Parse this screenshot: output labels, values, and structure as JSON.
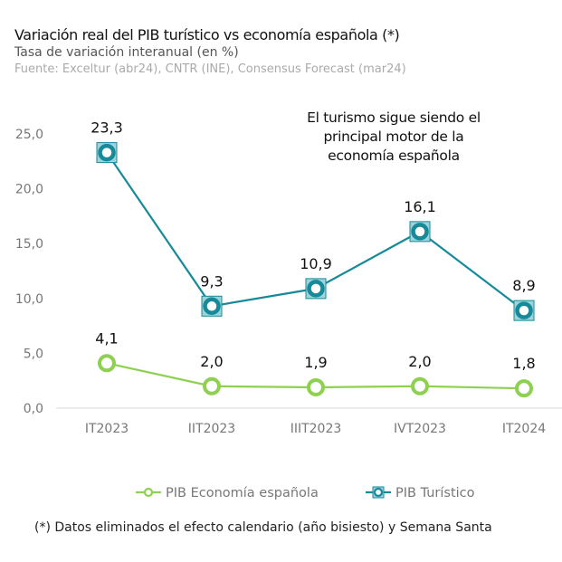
{
  "chart_data": {
    "type": "line",
    "title": "Variación real del PIB turístico vs economía española (*)",
    "subtitle": "Tasa de variación interanual (en %)",
    "source": "Fuente:  Exceltur (abr24), CNTR (INE), Consensus Forecast (mar24)",
    "annotation": [
      "El turismo sigue siendo el",
      "principal motor de la",
      "economía española"
    ],
    "footnote": "(*) Datos eliminados el efecto calendario (año bisiesto) y Semana Santa",
    "categories": [
      "IT2023",
      "IIT2023",
      "IIIT2023",
      "IVT2023",
      "IT2024"
    ],
    "ylim": [
      0,
      25
    ],
    "yticks": [
      "0,0",
      "5,0",
      "10,0",
      "15,0",
      "20,0",
      "25,0"
    ],
    "grid": false,
    "legend_position": "bottom",
    "series": [
      {
        "name": "PIB Economía española",
        "values": [
          4.1,
          2.0,
          1.9,
          2.0,
          1.8
        ],
        "labels": [
          "4,1",
          "2,0",
          "1,9",
          "2,0",
          "1,8"
        ],
        "color": "#8ed04f",
        "marker": "circle"
      },
      {
        "name": "PIB Turístico",
        "values": [
          23.3,
          9.3,
          10.9,
          16.1,
          8.9
        ],
        "labels": [
          "23,3",
          "9,3",
          "10,9",
          "16,1",
          "8,9"
        ],
        "color": "#178a99",
        "marker": "square-circle"
      }
    ]
  }
}
